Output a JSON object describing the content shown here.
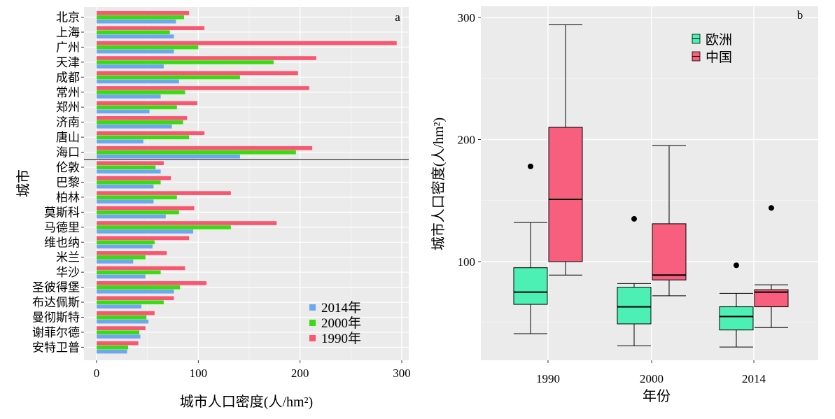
{
  "chart_data": [
    {
      "panel_label": "a",
      "type": "bar",
      "orientation": "horizontal",
      "xlabel": "城市人口密度(人/hm²)",
      "ylabel": "城市",
      "xlim": [
        0,
        300
      ],
      "xticks": [
        0,
        100,
        200,
        300
      ],
      "grid": true,
      "legend_position": "bottom-right",
      "divider_after_index": 9,
      "categories": [
        "北京",
        "上海",
        "广州",
        "天津",
        "成都",
        "常州",
        "郑州",
        "济南",
        "唐山",
        "海口",
        "伦敦",
        "巴黎",
        "柏林",
        "莫斯科",
        "马德里",
        "维也纳",
        "米兰",
        "华沙",
        "圣彼得堡",
        "布达佩斯",
        "曼彻斯特",
        "谢菲尔德",
        "安特卫普"
      ],
      "series": [
        {
          "name": "1990年",
          "color": "#F8576F",
          "values": [
            91,
            106,
            295,
            216,
            198,
            209,
            99,
            89,
            106,
            212,
            66,
            73,
            132,
            96,
            177,
            91,
            69,
            87,
            108,
            76,
            57,
            48,
            41
          ]
        },
        {
          "name": "2000年",
          "color": "#3ADB11",
          "values": [
            86,
            72,
            100,
            174,
            141,
            87,
            79,
            85,
            91,
            196,
            58,
            63,
            79,
            81,
            132,
            57,
            48,
            63,
            82,
            66,
            49,
            42,
            31
          ]
        },
        {
          "name": "2014年",
          "color": "#6EA6F0",
          "values": [
            78,
            76,
            76,
            66,
            81,
            63,
            52,
            74,
            46,
            141,
            63,
            56,
            56,
            68,
            95,
            55,
            36,
            48,
            76,
            44,
            51,
            43,
            30
          ]
        }
      ],
      "legend_order": [
        "2014年",
        "2000年",
        "1990年"
      ]
    },
    {
      "panel_label": "b",
      "type": "boxplot",
      "xlabel": "年份",
      "ylabel": "城市人口密度(人/hm²)",
      "ylim": [
        20,
        310
      ],
      "yticks": [
        100,
        200,
        300
      ],
      "grid": true,
      "legend_position": "top-right",
      "categories": [
        "1990",
        "2000",
        "2014"
      ],
      "series": [
        {
          "name": "欧洲",
          "color": "#4DF0B4",
          "boxes": [
            {
              "whisker_low": 41,
              "q1": 65,
              "median": 75,
              "q3": 95,
              "whisker_high": 132,
              "outliers": [
                178
              ]
            },
            {
              "whisker_low": 31,
              "q1": 49,
              "median": 63,
              "q3": 79,
              "whisker_high": 82,
              "outliers": [
                135
              ]
            },
            {
              "whisker_low": 30,
              "q1": 44,
              "median": 55,
              "q3": 63,
              "whisker_high": 74,
              "outliers": [
                97
              ]
            }
          ]
        },
        {
          "name": "中国",
          "color": "#F85E7E",
          "boxes": [
            {
              "whisker_low": 89,
              "q1": 100,
              "median": 151,
              "q3": 210,
              "whisker_high": 294,
              "outliers": []
            },
            {
              "whisker_low": 72,
              "q1": 85,
              "median": 89,
              "q3": 131,
              "whisker_high": 195,
              "outliers": []
            },
            {
              "whisker_low": 46,
              "q1": 63,
              "median": 75,
              "q3": 77,
              "whisker_high": 81,
              "outliers": [
                144
              ]
            }
          ]
        }
      ]
    }
  ]
}
